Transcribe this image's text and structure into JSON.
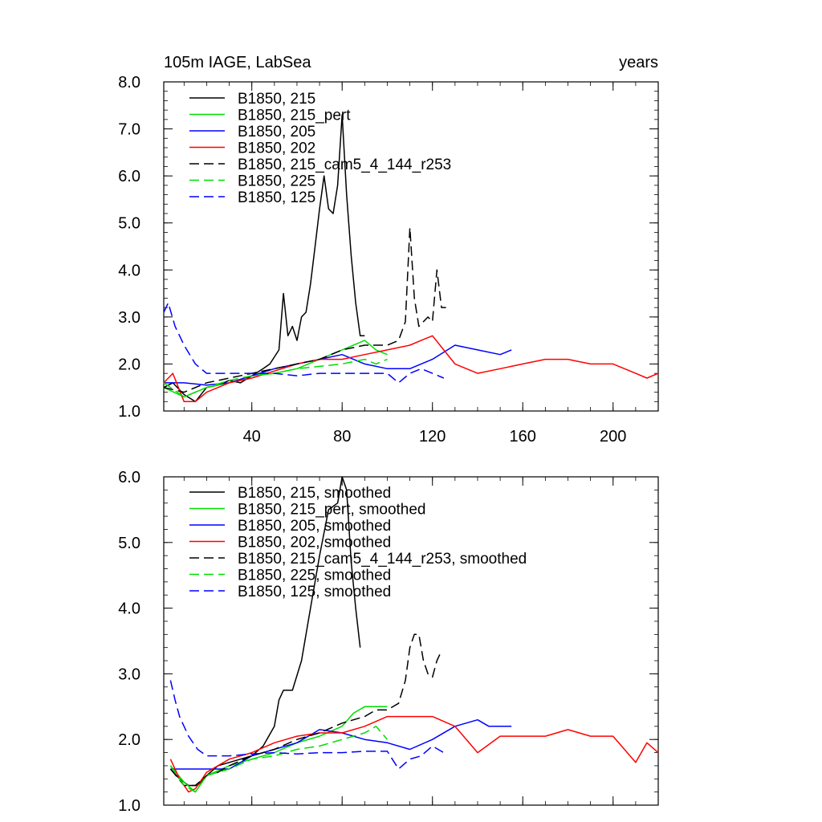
{
  "chart_data": [
    {
      "type": "line",
      "title_left": "105m IAGE, LabSea",
      "title_right": "years",
      "xlim": [
        1,
        220
      ],
      "ylim": [
        1.0,
        8.0
      ],
      "yticks": [
        "1.0",
        "2.0",
        "3.0",
        "4.0",
        "5.0",
        "6.0",
        "7.0",
        "8.0"
      ],
      "yticks_values": [
        1,
        2,
        3,
        4,
        5,
        6,
        7,
        8
      ],
      "xticks": [
        "40",
        "80",
        "120",
        "160",
        "200"
      ],
      "xticks_values": [
        40,
        80,
        120,
        160,
        200
      ],
      "legend_position": "top-left",
      "series": [
        {
          "name": "B1850, 215",
          "color": "#000000",
          "dash": "solid",
          "x": [
            1,
            5,
            10,
            15,
            20,
            25,
            30,
            35,
            40,
            45,
            48,
            52,
            54,
            56,
            58,
            60,
            62,
            64,
            66,
            68,
            70,
            72,
            74,
            76,
            78,
            80,
            82,
            84,
            86,
            88,
            90
          ],
          "y": [
            1.5,
            1.6,
            1.35,
            1.2,
            1.5,
            1.55,
            1.65,
            1.6,
            1.75,
            1.9,
            2.0,
            2.3,
            3.5,
            2.6,
            2.8,
            2.5,
            3.0,
            3.1,
            3.7,
            4.5,
            5.3,
            6.0,
            5.3,
            5.2,
            5.8,
            7.3,
            5.6,
            4.3,
            3.3,
            2.6,
            2.6
          ]
        },
        {
          "name": "B1850, 215_pert",
          "color": "#00dd00",
          "dash": "solid",
          "x": [
            1,
            10,
            20,
            30,
            40,
            50,
            60,
            70,
            80,
            90,
            95,
            100
          ],
          "y": [
            1.5,
            1.3,
            1.5,
            1.6,
            1.75,
            1.8,
            1.9,
            2.1,
            2.3,
            2.5,
            2.3,
            2.2
          ]
        },
        {
          "name": "B1850, 205",
          "color": "#0000ff",
          "dash": "solid",
          "x": [
            1,
            10,
            20,
            30,
            40,
            50,
            60,
            70,
            80,
            90,
            100,
            110,
            120,
            130,
            140,
            150,
            155
          ],
          "y": [
            1.6,
            1.6,
            1.55,
            1.6,
            1.75,
            1.9,
            2.0,
            2.1,
            2.2,
            2.0,
            1.9,
            1.9,
            2.1,
            2.4,
            2.3,
            2.2,
            2.3
          ]
        },
        {
          "name": "B1850, 202",
          "color": "#ff0000",
          "dash": "solid",
          "x": [
            1,
            5,
            10,
            15,
            20,
            30,
            40,
            50,
            60,
            70,
            80,
            90,
            100,
            110,
            115,
            120,
            125,
            130,
            140,
            150,
            160,
            170,
            180,
            190,
            200,
            210,
            215,
            220
          ],
          "y": [
            1.6,
            1.8,
            1.2,
            1.2,
            1.4,
            1.6,
            1.7,
            1.85,
            2.0,
            2.1,
            2.1,
            2.2,
            2.3,
            2.4,
            2.5,
            2.6,
            2.3,
            2.0,
            1.8,
            1.9,
            2.0,
            2.1,
            2.1,
            2.0,
            2.0,
            1.8,
            1.7,
            1.8
          ]
        },
        {
          "name": "B1850, 215_cam5_4_144_r253",
          "color": "#000000",
          "dash": "dashed",
          "x": [
            1,
            10,
            20,
            30,
            40,
            50,
            60,
            70,
            80,
            90,
            100,
            105,
            108,
            110,
            112,
            114,
            116,
            118,
            120,
            122,
            124,
            126
          ],
          "y": [
            1.5,
            1.4,
            1.6,
            1.7,
            1.8,
            1.9,
            2.0,
            2.1,
            2.3,
            2.4,
            2.4,
            2.5,
            2.9,
            4.9,
            3.4,
            2.8,
            2.9,
            3.0,
            2.9,
            4.0,
            3.2,
            3.2
          ]
        },
        {
          "name": "B1850, 225",
          "color": "#00dd00",
          "dash": "dashed",
          "x": [
            1,
            10,
            20,
            30,
            40,
            50,
            60,
            70,
            80,
            90,
            95,
            100
          ],
          "y": [
            1.6,
            1.3,
            1.5,
            1.65,
            1.75,
            1.8,
            1.9,
            1.95,
            2.0,
            2.1,
            2.0,
            2.1
          ]
        },
        {
          "name": "B1850, 125",
          "color": "#0000ff",
          "dash": "dashed",
          "x": [
            1,
            3,
            6,
            10,
            15,
            20,
            30,
            40,
            50,
            60,
            70,
            80,
            90,
            100,
            105,
            110,
            115,
            120,
            125
          ],
          "y": [
            3.1,
            3.3,
            2.8,
            2.4,
            2.0,
            1.8,
            1.8,
            1.8,
            1.8,
            1.75,
            1.8,
            1.8,
            1.8,
            1.8,
            1.6,
            1.8,
            1.9,
            1.8,
            1.7
          ]
        }
      ]
    },
    {
      "type": "line",
      "xlim": [
        1,
        220
      ],
      "ylim": [
        1.0,
        6.0
      ],
      "yticks": [
        "1.0",
        "2.0",
        "3.0",
        "4.0",
        "5.0",
        "6.0"
      ],
      "yticks_values": [
        1,
        2,
        3,
        4,
        5,
        6
      ],
      "xticks_values": [
        40,
        80,
        120,
        160,
        200
      ],
      "legend_position": "top-left",
      "series": [
        {
          "name": "B1850, 215, smoothed",
          "color": "#000000",
          "dash": "solid",
          "x": [
            4,
            8,
            12,
            16,
            20,
            25,
            30,
            35,
            40,
            45,
            50,
            52,
            54,
            58,
            62,
            66,
            70,
            74,
            78,
            80,
            82,
            84,
            86,
            88
          ],
          "y": [
            1.55,
            1.4,
            1.3,
            1.3,
            1.45,
            1.6,
            1.65,
            1.7,
            1.75,
            1.9,
            2.2,
            2.6,
            2.75,
            2.75,
            3.2,
            4.0,
            4.8,
            5.5,
            5.6,
            6.0,
            5.8,
            4.7,
            4.0,
            3.4
          ]
        },
        {
          "name": "B1850, 215_pert, smoothed",
          "color": "#00dd00",
          "dash": "solid",
          "x": [
            4,
            10,
            15,
            20,
            30,
            40,
            50,
            60,
            70,
            80,
            85,
            90,
            95,
            100
          ],
          "y": [
            1.6,
            1.35,
            1.2,
            1.45,
            1.6,
            1.7,
            1.8,
            1.95,
            2.05,
            2.2,
            2.4,
            2.5,
            2.5,
            2.5
          ]
        },
        {
          "name": "B1850, 205, smoothed",
          "color": "#0000ff",
          "dash": "solid",
          "x": [
            4,
            10,
            20,
            30,
            40,
            50,
            60,
            70,
            80,
            90,
            100,
            110,
            120,
            130,
            140,
            145,
            150,
            155
          ],
          "y": [
            1.55,
            1.55,
            1.55,
            1.55,
            1.75,
            1.85,
            1.95,
            2.15,
            2.1,
            2.0,
            1.95,
            1.85,
            2.0,
            2.2,
            2.3,
            2.2,
            2.2,
            2.2
          ]
        },
        {
          "name": "B1850, 202, smoothed",
          "color": "#ff0000",
          "dash": "solid",
          "x": [
            4,
            8,
            12,
            15,
            20,
            25,
            30,
            40,
            50,
            60,
            70,
            80,
            90,
            100,
            110,
            120,
            130,
            140,
            150,
            160,
            170,
            180,
            190,
            200,
            210,
            215,
            220
          ],
          "y": [
            1.7,
            1.4,
            1.2,
            1.25,
            1.5,
            1.6,
            1.7,
            1.8,
            1.95,
            2.05,
            2.1,
            2.1,
            2.2,
            2.35,
            2.35,
            2.35,
            2.2,
            1.8,
            2.05,
            2.05,
            2.05,
            2.15,
            2.05,
            2.05,
            1.65,
            1.95,
            1.8
          ]
        },
        {
          "name": "B1850, 215_cam5_4_144_r253, smoothed",
          "color": "#000000",
          "dash": "dashed",
          "x": [
            4,
            10,
            15,
            20,
            25,
            30,
            40,
            50,
            60,
            70,
            80,
            90,
            95,
            100,
            105,
            108,
            110,
            112,
            114,
            116,
            118,
            120,
            122,
            124
          ],
          "y": [
            1.55,
            1.3,
            1.3,
            1.45,
            1.5,
            1.6,
            1.75,
            1.85,
            2.0,
            2.1,
            2.25,
            2.35,
            2.45,
            2.45,
            2.55,
            2.9,
            3.4,
            3.6,
            3.6,
            3.2,
            3.0,
            2.95,
            3.2,
            3.35
          ]
        },
        {
          "name": "B1850, 225, smoothed",
          "color": "#00dd00",
          "dash": "dashed",
          "x": [
            4,
            10,
            15,
            20,
            30,
            40,
            50,
            60,
            70,
            80,
            90,
            95,
            100
          ],
          "y": [
            1.6,
            1.3,
            1.2,
            1.45,
            1.55,
            1.7,
            1.75,
            1.85,
            1.9,
            2.0,
            2.1,
            2.2,
            2.0
          ]
        },
        {
          "name": "B1850, 125, smoothed",
          "color": "#0000ff",
          "dash": "dashed",
          "x": [
            4,
            6,
            8,
            12,
            16,
            20,
            25,
            30,
            40,
            50,
            60,
            70,
            80,
            90,
            100,
            105,
            110,
            115,
            120,
            125
          ],
          "y": [
            2.9,
            2.6,
            2.35,
            2.05,
            1.85,
            1.75,
            1.75,
            1.75,
            1.78,
            1.8,
            1.78,
            1.8,
            1.8,
            1.82,
            1.82,
            1.55,
            1.7,
            1.75,
            1.9,
            1.8
          ]
        }
      ]
    }
  ]
}
